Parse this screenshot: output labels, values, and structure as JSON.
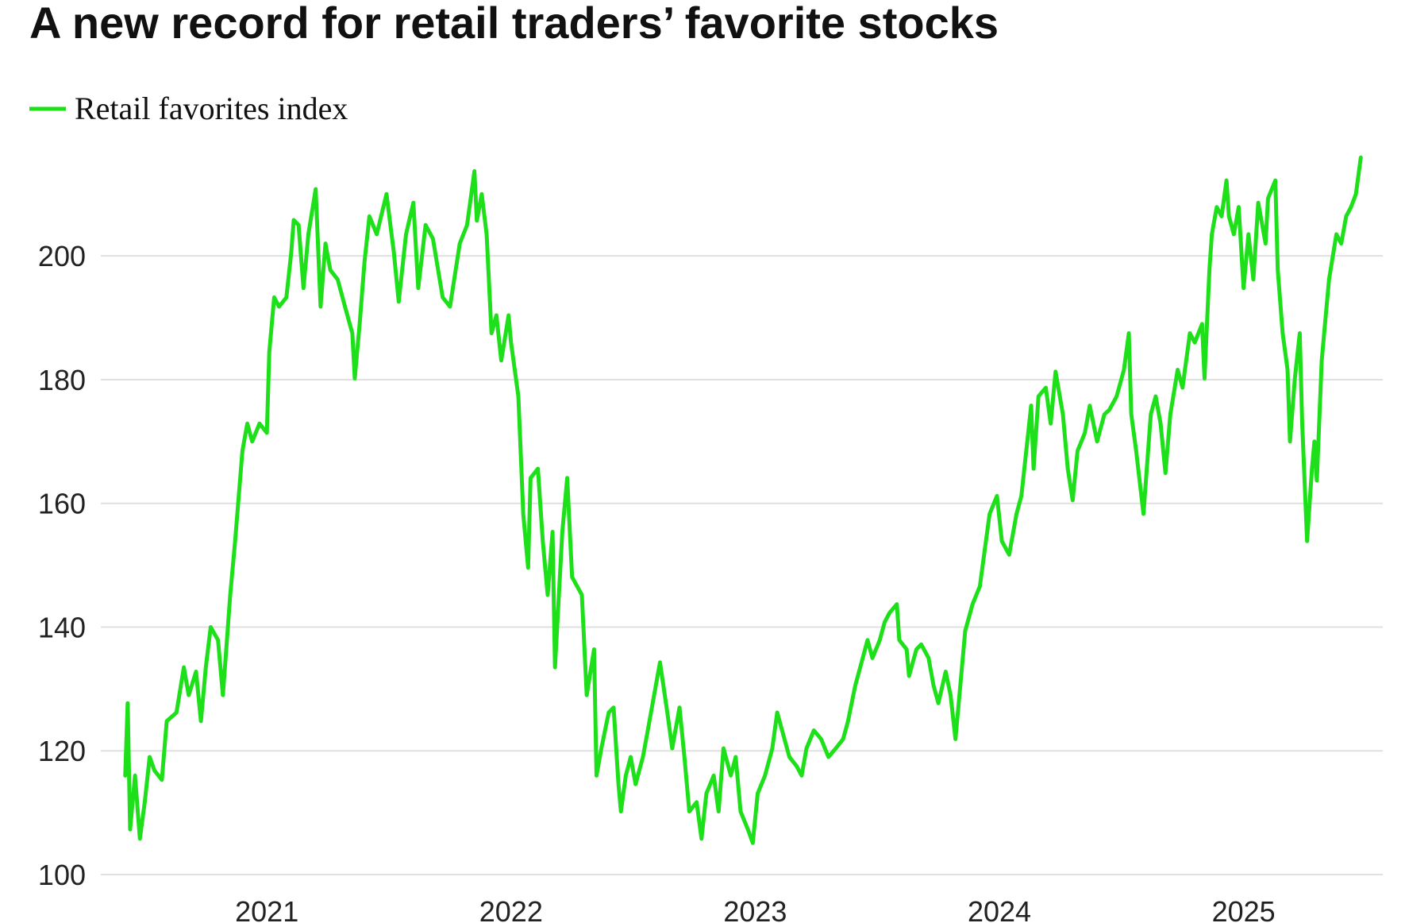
{
  "chart_data": {
    "type": "line",
    "title": "A new record for retail traders’ favorite stocks",
    "x": [
      2020.42,
      2020.43,
      2020.44,
      2020.46,
      2020.48,
      2020.5,
      2020.52,
      2020.54,
      2020.57,
      2020.59,
      2020.63,
      2020.66,
      2020.68,
      2020.71,
      2020.73,
      2020.75,
      2020.77,
      2020.8,
      2020.82,
      2020.85,
      2020.87,
      2020.9,
      2020.92,
      2020.94,
      2020.97,
      2021.0,
      2021.01,
      2021.03,
      2021.05,
      2021.08,
      2021.1,
      2021.11,
      2021.13,
      2021.15,
      2021.17,
      2021.2,
      2021.22,
      2021.24,
      2021.26,
      2021.29,
      2021.32,
      2021.35,
      2021.36,
      2021.38,
      2021.4,
      2021.42,
      2021.45,
      2021.49,
      2021.52,
      2021.54,
      2021.57,
      2021.6,
      2021.62,
      2021.65,
      2021.68,
      2021.72,
      2021.75,
      2021.79,
      2021.82,
      2021.85,
      2021.86,
      2021.88,
      2021.9,
      2021.92,
      2021.94,
      2021.96,
      2021.99,
      2022.0,
      2022.03,
      2022.05,
      2022.07,
      2022.08,
      2022.11,
      2022.13,
      2022.15,
      2022.17,
      2022.18,
      2022.21,
      2022.23,
      2022.25,
      2022.29,
      2022.31,
      2022.34,
      2022.35,
      2022.37,
      2022.4,
      2022.42,
      2022.44,
      2022.45,
      2022.47,
      2022.49,
      2022.51,
      2022.54,
      2022.56,
      2022.58,
      2022.61,
      2022.64,
      2022.66,
      2022.69,
      2022.71,
      2022.73,
      2022.76,
      2022.78,
      2022.8,
      2022.83,
      2022.85,
      2022.87,
      2022.9,
      2022.92,
      2022.94,
      2022.97,
      2022.99,
      2023.01,
      2023.04,
      2023.07,
      2023.09,
      2023.11,
      2023.14,
      2023.17,
      2023.19,
      2023.21,
      2023.24,
      2023.27,
      2023.3,
      2023.33,
      2023.36,
      2023.38,
      2023.41,
      2023.43,
      2023.46,
      2023.48,
      2023.51,
      2023.53,
      2023.55,
      2023.58,
      2023.59,
      2023.62,
      2023.63,
      2023.66,
      2023.68,
      2023.71,
      2023.73,
      2023.75,
      2023.78,
      2023.8,
      2023.82,
      2023.84,
      2023.86,
      2023.89,
      2023.92,
      2023.94,
      2023.96,
      2023.99,
      2024.01,
      2024.04,
      2024.07,
      2024.09,
      2024.11,
      2024.13,
      2024.14,
      2024.16,
      2024.19,
      2024.21,
      2024.23,
      2024.26,
      2024.28,
      2024.3,
      2024.32,
      2024.35,
      2024.37,
      2024.4,
      2024.43,
      2024.45,
      2024.48,
      2024.51,
      2024.53,
      2024.54,
      2024.56,
      2024.59,
      2024.62,
      2024.64,
      2024.66,
      2024.68,
      2024.7,
      2024.73,
      2024.75,
      2024.78,
      2024.8,
      2024.83,
      2024.84,
      2024.86,
      2024.87,
      2024.89,
      2024.91,
      2024.93,
      2024.94,
      2024.96,
      2024.98,
      2025.0,
      2025.02,
      2025.04,
      2025.06,
      2025.09,
      2025.1,
      2025.13,
      2025.14,
      2025.16,
      2025.18,
      2025.19,
      2025.21,
      2025.23,
      2025.24,
      2025.26,
      2025.28,
      2025.29,
      2025.3,
      2025.32,
      2025.33,
      2025.35,
      2025.38,
      2025.4,
      2025.42,
      2025.44,
      2025.46,
      2025.48
    ],
    "series": [
      {
        "name": "Retail favorites index",
        "color": "#1ee01a",
        "values": [
          116.0,
          127.7,
          107.3,
          116.0,
          105.8,
          111.7,
          119.0,
          116.8,
          115.3,
          124.8,
          126.2,
          133.5,
          129.0,
          132.8,
          124.8,
          133.5,
          140.0,
          137.9,
          129.0,
          145.2,
          153.9,
          168.5,
          172.9,
          170.0,
          172.9,
          171.4,
          184.5,
          193.3,
          191.8,
          193.3,
          200.6,
          205.8,
          205.0,
          194.8,
          203.5,
          210.8,
          191.8,
          202.0,
          197.7,
          196.2,
          191.8,
          187.5,
          180.2,
          189.0,
          199.1,
          206.4,
          203.5,
          210.0,
          200.6,
          192.6,
          203.5,
          208.6,
          194.8,
          205.0,
          202.8,
          193.3,
          191.8,
          202.0,
          205.0,
          213.7,
          205.7,
          210.0,
          203.5,
          187.5,
          190.4,
          183.1,
          190.4,
          186.0,
          177.3,
          158.3,
          149.6,
          164.1,
          165.6,
          153.9,
          145.2,
          155.4,
          133.5,
          155.4,
          164.1,
          148.1,
          145.2,
          129.0,
          136.4,
          116.0,
          120.4,
          126.2,
          127.0,
          114.6,
          110.2,
          116.0,
          119.0,
          114.6,
          119.0,
          123.3,
          127.7,
          134.3,
          126.2,
          120.4,
          127.0,
          119.0,
          110.2,
          111.7,
          105.8,
          113.1,
          116.0,
          110.2,
          120.4,
          116.0,
          119.0,
          110.2,
          107.3,
          105.1,
          113.1,
          116.0,
          120.4,
          126.2,
          123.3,
          119.0,
          117.5,
          116.0,
          120.4,
          123.3,
          121.9,
          119.0,
          120.4,
          121.9,
          124.8,
          130.6,
          133.5,
          137.9,
          135.0,
          137.9,
          140.8,
          142.3,
          143.7,
          137.9,
          136.4,
          132.1,
          136.4,
          137.2,
          135.0,
          130.6,
          127.7,
          132.8,
          129.0,
          121.9,
          130.6,
          139.4,
          143.7,
          146.6,
          152.5,
          158.3,
          161.2,
          153.9,
          151.7,
          158.3,
          161.2,
          168.5,
          175.8,
          165.6,
          177.3,
          178.7,
          172.9,
          181.3,
          174.4,
          165.6,
          160.5,
          168.5,
          171.4,
          175.8,
          170.0,
          174.4,
          175.1,
          177.3,
          181.6,
          187.5,
          174.4,
          168.5,
          158.3,
          174.4,
          177.3,
          172.9,
          164.9,
          174.4,
          181.6,
          178.7,
          187.5,
          186.0,
          189.0,
          180.2,
          197.7,
          203.5,
          207.9,
          206.4,
          212.2,
          206.4,
          203.5,
          207.9,
          194.8,
          203.5,
          196.2,
          208.6,
          202.0,
          209.3,
          212.2,
          197.7,
          187.5,
          181.6,
          170.0,
          180.2,
          187.5,
          172.9,
          153.9,
          165.6,
          170.0,
          163.7,
          183.1,
          187.5,
          196.2,
          203.5,
          202.0,
          206.4,
          207.9,
          210.0,
          215.9
        ]
      }
    ],
    "xlim": [
      2020.32,
      2025.57
    ],
    "xticks": [
      2021,
      2022,
      2023,
      2024,
      2025
    ],
    "ylim": [
      100,
      218
    ],
    "yticks": [
      100,
      120,
      140,
      160,
      180,
      200
    ],
    "grid": true
  }
}
